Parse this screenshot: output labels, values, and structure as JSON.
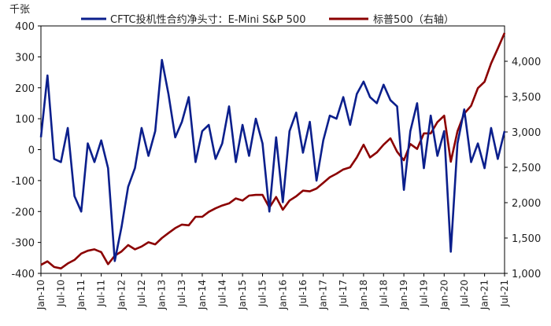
{
  "chart_data": {
    "type": "line",
    "left_unit_label": "千张",
    "series": [
      {
        "name": "CFTC投机性合约净头寸：E-Mini S&P 500",
        "axis": "left",
        "color": "#0b1f8c",
        "x": [
          "2010-01",
          "2010-03",
          "2010-05",
          "2010-07",
          "2010-09",
          "2010-11",
          "2011-01",
          "2011-03",
          "2011-05",
          "2011-07",
          "2011-09",
          "2011-11",
          "2012-01",
          "2012-03",
          "2012-05",
          "2012-07",
          "2012-09",
          "2012-11",
          "2013-01",
          "2013-03",
          "2013-05",
          "2013-07",
          "2013-09",
          "2013-11",
          "2014-01",
          "2014-03",
          "2014-05",
          "2014-07",
          "2014-09",
          "2014-11",
          "2015-01",
          "2015-03",
          "2015-05",
          "2015-07",
          "2015-09",
          "2015-11",
          "2016-01",
          "2016-03",
          "2016-05",
          "2016-07",
          "2016-09",
          "2016-11",
          "2017-01",
          "2017-03",
          "2017-05",
          "2017-07",
          "2017-09",
          "2017-11",
          "2018-01",
          "2018-03",
          "2018-05",
          "2018-07",
          "2018-09",
          "2018-11",
          "2019-01",
          "2019-03",
          "2019-05",
          "2019-07",
          "2019-09",
          "2019-11",
          "2020-01",
          "2020-03",
          "2020-05",
          "2020-07",
          "2020-09",
          "2020-11",
          "2021-01",
          "2021-03",
          "2021-05",
          "2021-07"
        ],
        "values": [
          40,
          240,
          -30,
          -40,
          70,
          -150,
          -200,
          20,
          -40,
          30,
          -60,
          -360,
          -250,
          -120,
          -60,
          70,
          -20,
          60,
          290,
          180,
          40,
          90,
          170,
          -40,
          60,
          80,
          -30,
          20,
          140,
          -40,
          80,
          -20,
          100,
          20,
          -200,
          40,
          -170,
          60,
          120,
          -10,
          90,
          -100,
          30,
          110,
          100,
          170,
          80,
          180,
          220,
          170,
          150,
          210,
          160,
          140,
          -130,
          60,
          150,
          -60,
          110,
          -20,
          60,
          -330,
          20,
          130,
          -40,
          20,
          -60,
          70,
          -30,
          60
        ]
      },
      {
        "name": "标普500（右轴）",
        "axis": "right",
        "color": "#8b0000",
        "x": [
          "2010-01",
          "2010-03",
          "2010-05",
          "2010-07",
          "2010-09",
          "2010-11",
          "2011-01",
          "2011-03",
          "2011-05",
          "2011-07",
          "2011-09",
          "2011-11",
          "2012-01",
          "2012-03",
          "2012-05",
          "2012-07",
          "2012-09",
          "2012-11",
          "2013-01",
          "2013-03",
          "2013-05",
          "2013-07",
          "2013-09",
          "2013-11",
          "2014-01",
          "2014-03",
          "2014-05",
          "2014-07",
          "2014-09",
          "2014-11",
          "2015-01",
          "2015-03",
          "2015-05",
          "2015-07",
          "2015-09",
          "2015-11",
          "2016-01",
          "2016-03",
          "2016-05",
          "2016-07",
          "2016-09",
          "2016-11",
          "2017-01",
          "2017-03",
          "2017-05",
          "2017-07",
          "2017-09",
          "2017-11",
          "2018-01",
          "2018-03",
          "2018-05",
          "2018-07",
          "2018-09",
          "2018-11",
          "2019-01",
          "2019-03",
          "2019-05",
          "2019-07",
          "2019-09",
          "2019-11",
          "2020-01",
          "2020-03",
          "2020-05",
          "2020-07",
          "2020-09",
          "2020-11",
          "2021-01",
          "2021-03",
          "2021-05",
          "2021-07"
        ],
        "values": [
          1120,
          1170,
          1090,
          1070,
          1140,
          1190,
          1280,
          1320,
          1340,
          1300,
          1130,
          1250,
          1310,
          1400,
          1340,
          1380,
          1440,
          1410,
          1500,
          1570,
          1640,
          1690,
          1680,
          1800,
          1800,
          1870,
          1920,
          1960,
          1990,
          2060,
          2030,
          2100,
          2110,
          2110,
          1930,
          2080,
          1900,
          2030,
          2090,
          2170,
          2160,
          2200,
          2280,
          2360,
          2410,
          2470,
          2500,
          2640,
          2820,
          2640,
          2710,
          2820,
          2910,
          2720,
          2600,
          2830,
          2760,
          2980,
          2980,
          3140,
          3230,
          2580,
          3010,
          3260,
          3370,
          3620,
          3710,
          3970,
          4180,
          4400
        ]
      }
    ],
    "x_tick_labels": [
      "Jan-10",
      "Jul-10",
      "Jan-11",
      "Jul-11",
      "Jan-12",
      "Jul-12",
      "Jan-13",
      "Jul-13",
      "Jan-14",
      "Jul-14",
      "Jan-15",
      "Jul-15",
      "Jan-16",
      "Jul-16",
      "Jan-17",
      "Jul-17",
      "Jan-18",
      "Jul-18",
      "Jan-19",
      "Jul-19",
      "Jan-20",
      "Jul-20",
      "Jan-21",
      "Jul-21"
    ],
    "left_tick_labels": [
      "400",
      "300",
      "200",
      "100",
      "0",
      "-100",
      "-200",
      "-300",
      "-400"
    ],
    "right_tick_labels": [
      "4,000",
      "3,500",
      "3,000",
      "2,500",
      "2,000",
      "1,500",
      "1,000"
    ],
    "ylim_left": [
      -400,
      400
    ],
    "ylim_right": [
      1000,
      4500
    ],
    "grid": false,
    "legend_position": "top"
  }
}
